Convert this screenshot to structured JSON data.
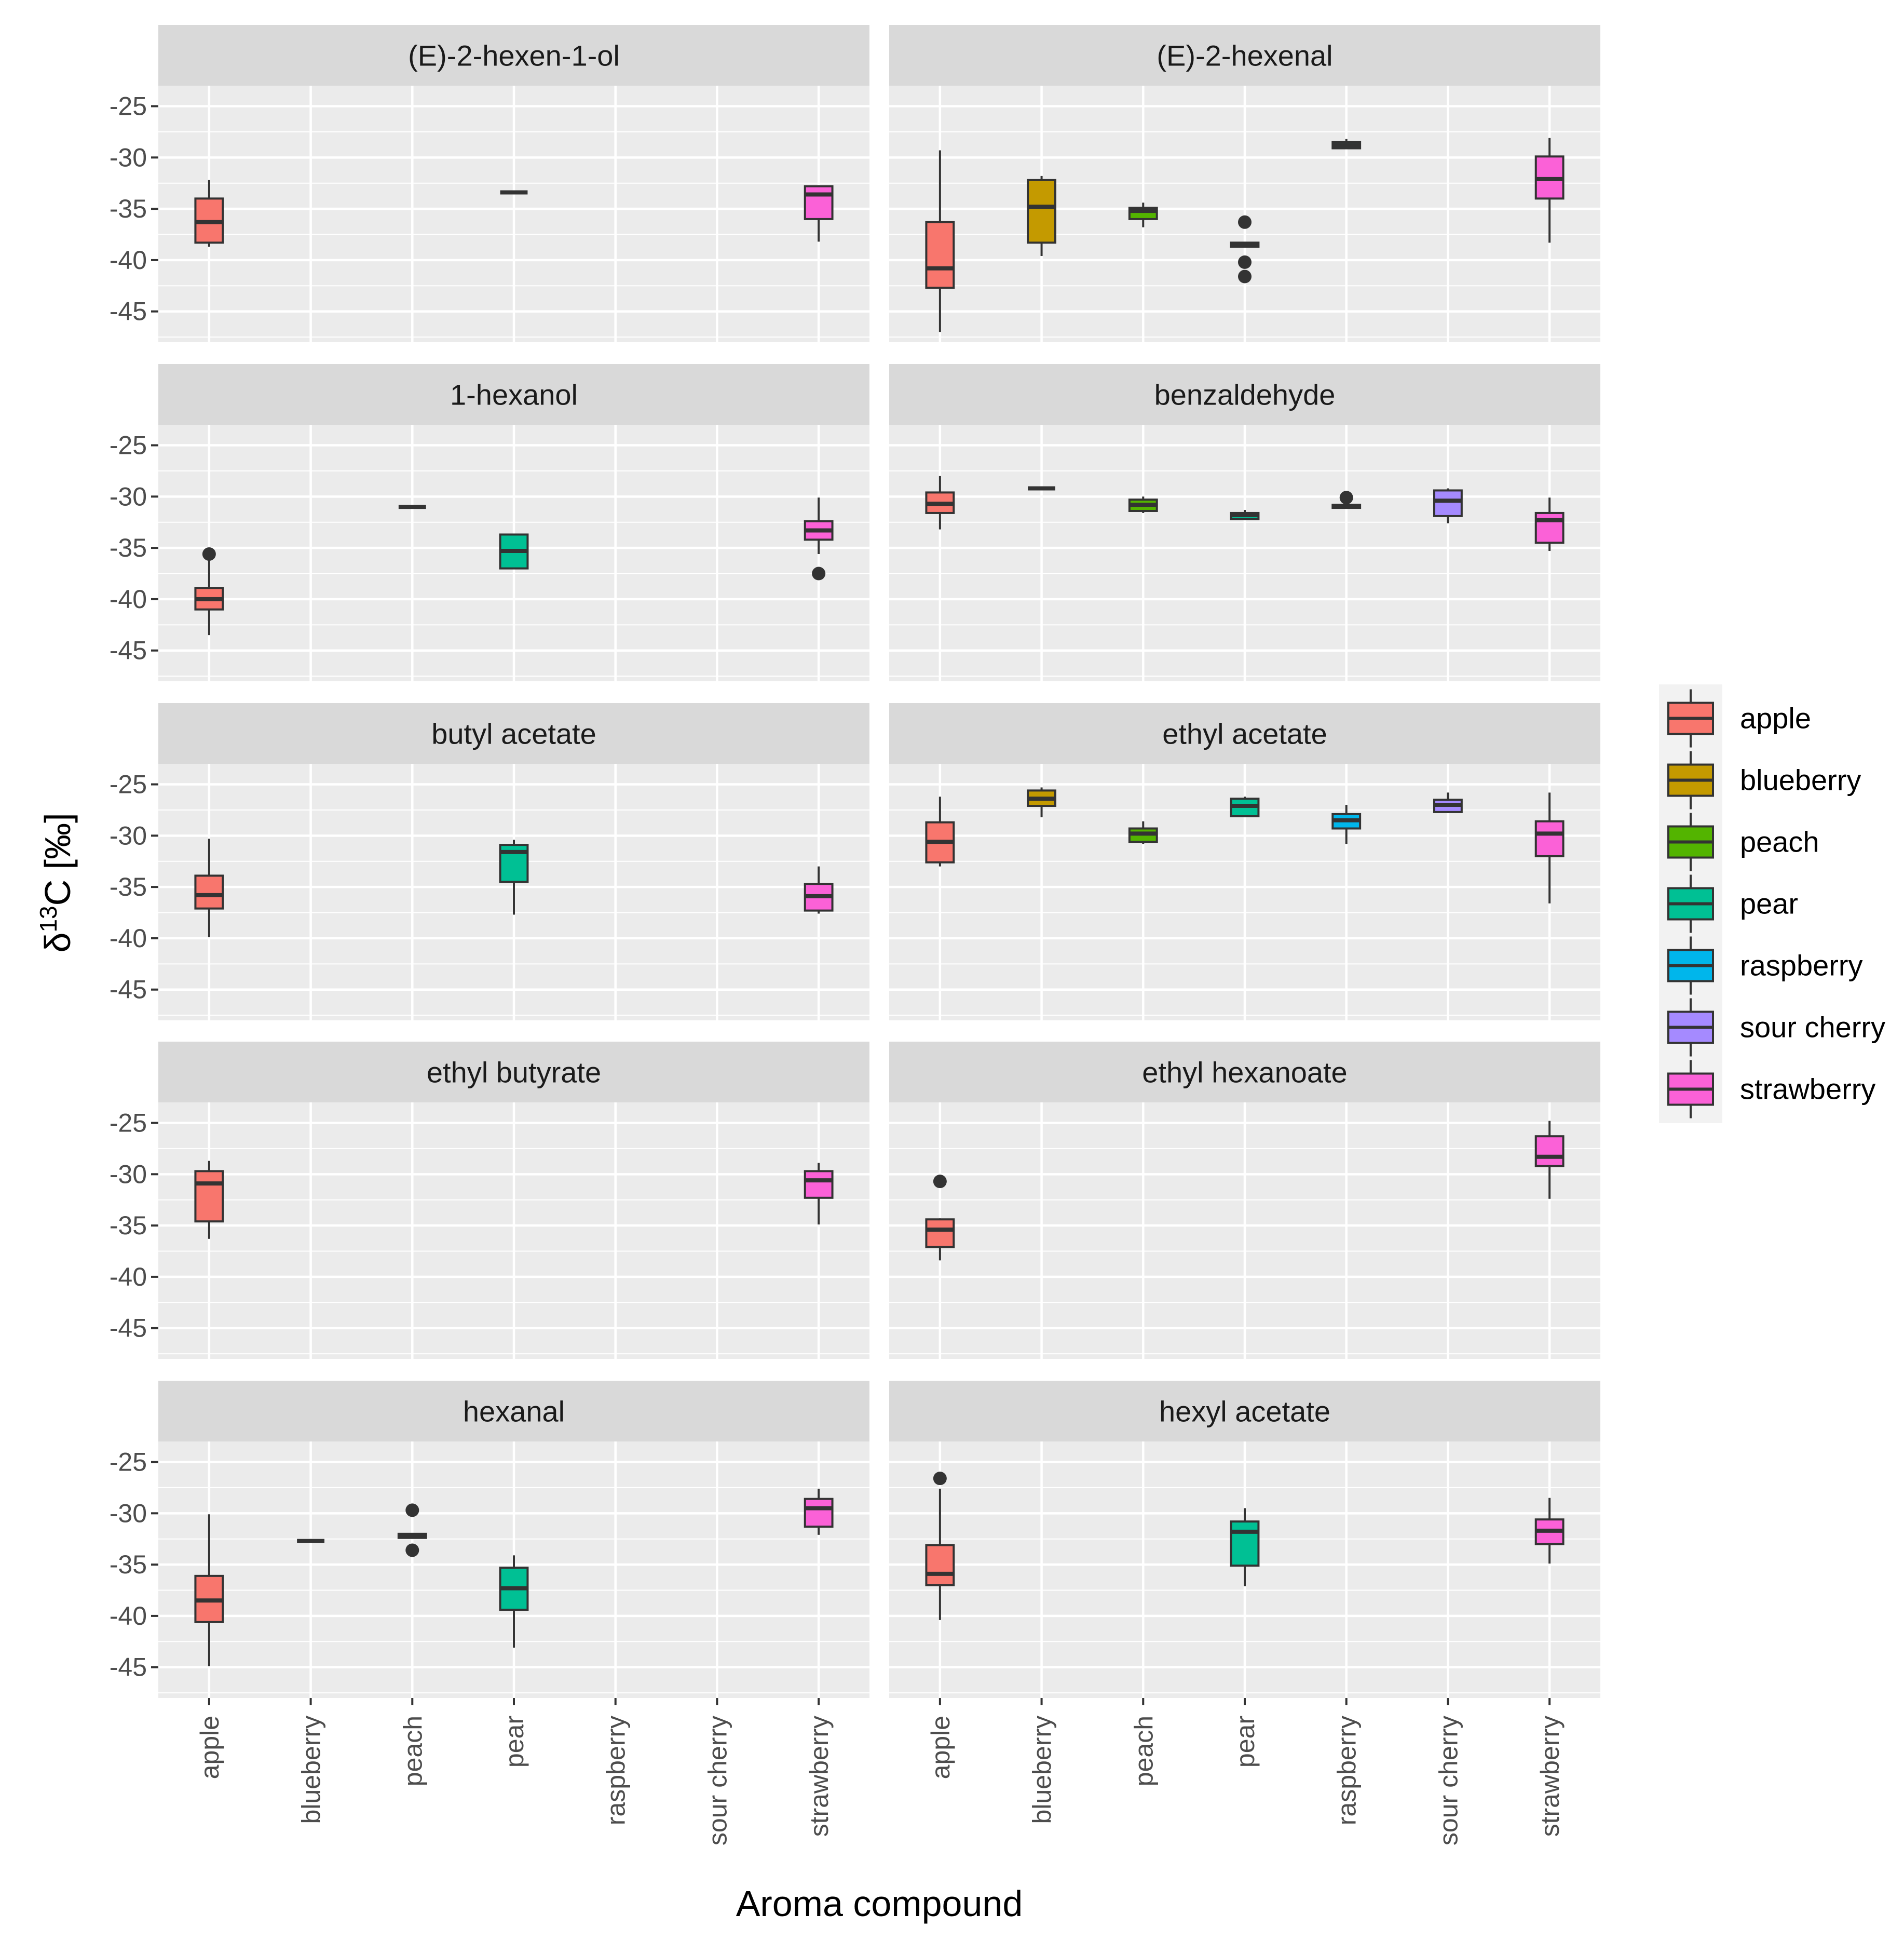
{
  "chart_data": {
    "type": "boxplot",
    "xlabel": "Aroma compound",
    "ylabel_prefix": "δ",
    "ylabel_sup": "13",
    "ylabel_suffix": "C [‰]",
    "ylim": [
      -48,
      -23
    ],
    "yticks": [
      -25,
      -30,
      -35,
      -40,
      -45
    ],
    "categories": [
      "apple",
      "blueberry",
      "peach",
      "pear",
      "raspberry",
      "sour cherry",
      "strawberry"
    ],
    "colors": {
      "apple": "#f8766d",
      "blueberry": "#c49a00",
      "peach": "#53b400",
      "pear": "#00c094",
      "raspberry": "#00b6eb",
      "sour cherry": "#a58aff",
      "strawberry": "#fb61d7"
    },
    "legend": {
      "position": "right",
      "items": [
        "apple",
        "blueberry",
        "peach",
        "pear",
        "raspberry",
        "sour cherry",
        "strawberry"
      ]
    },
    "panels": [
      {
        "title": "(E)-2-hexen-1-ol",
        "boxes": [
          {
            "cat": "apple",
            "lw": -38.7,
            "q1": -38.3,
            "med": -36.3,
            "q3": -34.0,
            "uw": -32.2,
            "outliers": []
          },
          {
            "cat": "pear",
            "lw": -33.4,
            "q1": -33.4,
            "med": -33.4,
            "q3": -33.4,
            "uw": -33.4,
            "outliers": []
          },
          {
            "cat": "strawberry",
            "lw": -38.2,
            "q1": -36.0,
            "med": -33.6,
            "q3": -32.8,
            "uw": -32.7,
            "outliers": []
          }
        ]
      },
      {
        "title": "(E)-2-hexenal",
        "boxes": [
          {
            "cat": "apple",
            "lw": -47.0,
            "q1": -42.7,
            "med": -40.8,
            "q3": -36.3,
            "uw": -29.3,
            "outliers": []
          },
          {
            "cat": "blueberry",
            "lw": -39.6,
            "q1": -38.3,
            "med": -34.8,
            "q3": -32.2,
            "uw": -31.8,
            "outliers": []
          },
          {
            "cat": "peach",
            "lw": -36.8,
            "q1": -36.0,
            "med": -35.2,
            "q3": -34.9,
            "uw": -34.4,
            "outliers": []
          },
          {
            "cat": "pear",
            "lw": -38.7,
            "q1": -38.7,
            "med": -38.5,
            "q3": -38.3,
            "uw": -38.3,
            "outliers": [
              -36.3,
              -40.2,
              -41.6
            ]
          },
          {
            "cat": "raspberry",
            "lw": -29.2,
            "q1": -29.1,
            "med": -28.8,
            "q3": -28.5,
            "uw": -28.2,
            "outliers": []
          },
          {
            "cat": "strawberry",
            "lw": -38.3,
            "q1": -34.0,
            "med": -32.1,
            "q3": -29.9,
            "uw": -28.1,
            "outliers": []
          }
        ]
      },
      {
        "title": "1-hexanol",
        "boxes": [
          {
            "cat": "apple",
            "lw": -43.5,
            "q1": -41.0,
            "med": -40.0,
            "q3": -38.9,
            "uw": -36.2,
            "outliers": [
              -35.6
            ]
          },
          {
            "cat": "peach",
            "lw": -31.0,
            "q1": -31.0,
            "med": -31.0,
            "q3": -31.0,
            "uw": -31.0,
            "outliers": []
          },
          {
            "cat": "pear",
            "lw": -37.0,
            "q1": -37.0,
            "med": -35.3,
            "q3": -33.7,
            "uw": -33.7,
            "outliers": []
          },
          {
            "cat": "strawberry",
            "lw": -35.6,
            "q1": -34.2,
            "med": -33.3,
            "q3": -32.4,
            "uw": -30.1,
            "outliers": [
              -37.5
            ]
          }
        ]
      },
      {
        "title": "benzaldehyde",
        "boxes": [
          {
            "cat": "apple",
            "lw": -33.2,
            "q1": -31.6,
            "med": -30.7,
            "q3": -29.6,
            "uw": -28.0,
            "outliers": []
          },
          {
            "cat": "blueberry",
            "lw": -29.2,
            "q1": -29.2,
            "med": -29.2,
            "q3": -29.2,
            "uw": -29.2,
            "outliers": []
          },
          {
            "cat": "peach",
            "lw": -31.6,
            "q1": -31.4,
            "med": -30.8,
            "q3": -30.3,
            "uw": -30.0,
            "outliers": []
          },
          {
            "cat": "pear",
            "lw": -32.3,
            "q1": -32.2,
            "med": -31.8,
            "q3": -31.6,
            "uw": -31.3,
            "outliers": []
          },
          {
            "cat": "raspberry",
            "lw": -31.2,
            "q1": -31.1,
            "med": -30.9,
            "q3": -30.8,
            "uw": -30.6,
            "outliers": [
              -30.1
            ]
          },
          {
            "cat": "sour cherry",
            "lw": -32.6,
            "q1": -31.9,
            "med": -30.4,
            "q3": -29.4,
            "uw": -29.2,
            "outliers": []
          },
          {
            "cat": "strawberry",
            "lw": -35.3,
            "q1": -34.5,
            "med": -32.3,
            "q3": -31.6,
            "uw": -30.1,
            "outliers": []
          }
        ]
      },
      {
        "title": "butyl acetate",
        "boxes": [
          {
            "cat": "apple",
            "lw": -39.9,
            "q1": -37.1,
            "med": -35.8,
            "q3": -33.9,
            "uw": -30.3,
            "outliers": []
          },
          {
            "cat": "pear",
            "lw": -37.7,
            "q1": -34.5,
            "med": -31.6,
            "q3": -30.9,
            "uw": -30.4,
            "outliers": []
          },
          {
            "cat": "strawberry",
            "lw": -37.6,
            "q1": -37.3,
            "med": -35.9,
            "q3": -34.7,
            "uw": -33.0,
            "outliers": []
          }
        ]
      },
      {
        "title": "ethyl acetate",
        "boxes": [
          {
            "cat": "apple",
            "lw": -33.0,
            "q1": -32.6,
            "med": -30.6,
            "q3": -28.7,
            "uw": -26.2,
            "outliers": []
          },
          {
            "cat": "blueberry",
            "lw": -28.2,
            "q1": -27.1,
            "med": -26.4,
            "q3": -25.6,
            "uw": -25.3,
            "outliers": []
          },
          {
            "cat": "peach",
            "lw": -30.8,
            "q1": -30.6,
            "med": -29.8,
            "q3": -29.3,
            "uw": -28.6,
            "outliers": []
          },
          {
            "cat": "pear",
            "lw": -28.2,
            "q1": -28.1,
            "med": -27.1,
            "q3": -26.4,
            "uw": -26.2,
            "outliers": []
          },
          {
            "cat": "raspberry",
            "lw": -30.8,
            "q1": -29.3,
            "med": -28.5,
            "q3": -27.9,
            "uw": -27.0,
            "outliers": []
          },
          {
            "cat": "sour cherry",
            "lw": -27.8,
            "q1": -27.7,
            "med": -27.0,
            "q3": -26.5,
            "uw": -25.8,
            "outliers": []
          },
          {
            "cat": "strawberry",
            "lw": -36.6,
            "q1": -32.0,
            "med": -29.8,
            "q3": -28.6,
            "uw": -25.8,
            "outliers": []
          }
        ]
      },
      {
        "title": "ethyl butyrate",
        "boxes": [
          {
            "cat": "apple",
            "lw": -36.3,
            "q1": -34.6,
            "med": -30.9,
            "q3": -29.7,
            "uw": -28.7,
            "outliers": []
          },
          {
            "cat": "strawberry",
            "lw": -34.9,
            "q1": -32.3,
            "med": -30.6,
            "q3": -29.7,
            "uw": -28.9,
            "outliers": []
          }
        ]
      },
      {
        "title": "ethyl hexanoate",
        "boxes": [
          {
            "cat": "apple",
            "lw": -38.4,
            "q1": -37.1,
            "med": -35.4,
            "q3": -34.4,
            "uw": -34.3,
            "outliers": [
              -30.7
            ]
          },
          {
            "cat": "strawberry",
            "lw": -32.4,
            "q1": -29.2,
            "med": -28.3,
            "q3": -26.3,
            "uw": -24.8,
            "outliers": []
          }
        ]
      },
      {
        "title": "hexanal",
        "boxes": [
          {
            "cat": "apple",
            "lw": -44.9,
            "q1": -40.6,
            "med": -38.5,
            "q3": -36.1,
            "uw": -30.1,
            "outliers": []
          },
          {
            "cat": "blueberry",
            "lw": -32.7,
            "q1": -32.7,
            "med": -32.7,
            "q3": -32.7,
            "uw": -32.7,
            "outliers": []
          },
          {
            "cat": "peach",
            "lw": -32.4,
            "q1": -32.4,
            "med": -32.2,
            "q3": -32.0,
            "uw": -32.0,
            "outliers": [
              -29.7,
              -33.6
            ]
          },
          {
            "cat": "pear",
            "lw": -43.1,
            "q1": -39.4,
            "med": -37.3,
            "q3": -35.3,
            "uw": -34.1,
            "outliers": []
          },
          {
            "cat": "strawberry",
            "lw": -32.1,
            "q1": -31.3,
            "med": -29.5,
            "q3": -28.6,
            "uw": -27.6,
            "outliers": []
          }
        ]
      },
      {
        "title": "hexyl acetate",
        "boxes": [
          {
            "cat": "apple",
            "lw": -40.4,
            "q1": -37.0,
            "med": -35.9,
            "q3": -33.1,
            "uw": -27.6,
            "outliers": [
              -26.6
            ]
          },
          {
            "cat": "pear",
            "lw": -37.1,
            "q1": -35.1,
            "med": -31.8,
            "q3": -30.8,
            "uw": -29.5,
            "outliers": []
          },
          {
            "cat": "strawberry",
            "lw": -34.9,
            "q1": -33.0,
            "med": -31.7,
            "q3": -30.6,
            "uw": -28.5,
            "outliers": []
          }
        ]
      }
    ]
  }
}
